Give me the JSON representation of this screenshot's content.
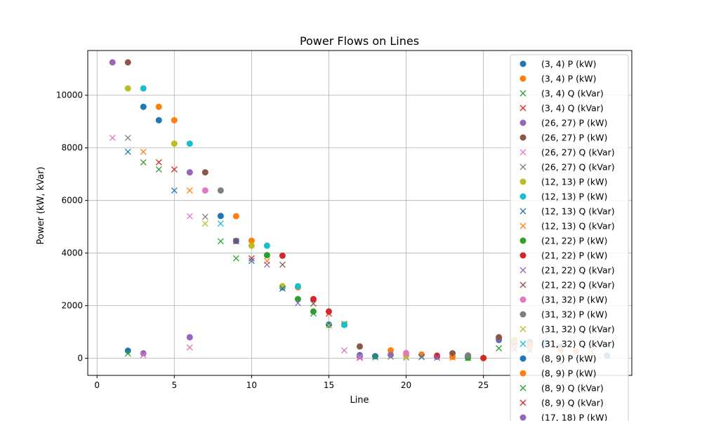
{
  "chart_data": {
    "type": "scatter",
    "title": "Power Flows on Lines",
    "xlabel": "Line",
    "ylabel": "Power (kW, kVar)",
    "xlim": [
      -0.6,
      34.6
    ],
    "ylim": [
      -650,
      11700
    ],
    "xticks": [
      0,
      5,
      10,
      15,
      20,
      25
    ],
    "yticks": [
      0,
      2000,
      4000,
      6000,
      8000,
      10000
    ],
    "grid": true,
    "legend_position": "right",
    "series": [
      {
        "name": "(3, 4) P (kW)",
        "marker": "circle",
        "color": "#1f77b4",
        "points": [
          [
            2,
            290
          ],
          [
            3,
            9560
          ],
          [
            4,
            9050
          ],
          [
            9,
            4460
          ],
          [
            12,
            2700
          ],
          [
            15,
            1280
          ],
          [
            17,
            120
          ],
          [
            18,
            80
          ],
          [
            21,
            140
          ],
          [
            24,
            80
          ],
          [
            26,
            700
          ],
          [
            27,
            650
          ],
          [
            28,
            620
          ],
          [
            29,
            550
          ],
          [
            30,
            440
          ],
          [
            33,
            100
          ]
        ]
      },
      {
        "name": "(3, 4) P (kW)",
        "marker": "circle",
        "color": "#ff7f0e",
        "points": [
          [
            4,
            9560
          ],
          [
            5,
            9050
          ],
          [
            9,
            5400
          ],
          [
            10,
            4470
          ],
          [
            13,
            2700
          ],
          [
            16,
            1280
          ],
          [
            19,
            300
          ],
          [
            21,
            140
          ],
          [
            23,
            60
          ],
          [
            25,
            10
          ],
          [
            27,
            560
          ],
          [
            28,
            520
          ],
          [
            30,
            300
          ],
          [
            31,
            260
          ]
        ]
      },
      {
        "name": "(3, 4) Q (kVar)",
        "marker": "x",
        "color": "#2ca02c",
        "points": [
          [
            2,
            180
          ],
          [
            3,
            7450
          ],
          [
            4,
            7180
          ],
          [
            8,
            4450
          ],
          [
            9,
            3800
          ],
          [
            14,
            1700
          ],
          [
            16,
            1300
          ],
          [
            18,
            40
          ],
          [
            24,
            10
          ],
          [
            26,
            380
          ]
        ]
      },
      {
        "name": "(3, 4) Q (kVar)",
        "marker": "x",
        "color": "#d62728",
        "points": [
          [
            4,
            7450
          ],
          [
            5,
            7180
          ],
          [
            9,
            4450
          ],
          [
            10,
            3800
          ],
          [
            15,
            1700
          ],
          [
            17,
            20
          ],
          [
            27,
            350
          ]
        ]
      },
      {
        "name": "(26, 27) P (kW)",
        "marker": "circle",
        "color": "#9467bd",
        "points": [
          [
            1,
            11250
          ],
          [
            3,
            190
          ],
          [
            6,
            7070
          ],
          [
            6,
            800
          ],
          [
            17,
            80
          ],
          [
            19,
            130
          ],
          [
            22,
            60
          ],
          [
            26,
            750
          ],
          [
            27,
            620
          ],
          [
            29,
            520
          ]
        ]
      },
      {
        "name": "(26, 27) P (kW)",
        "marker": "circle",
        "color": "#8c564b",
        "points": [
          [
            2,
            11250
          ],
          [
            7,
            7070
          ],
          [
            17,
            450
          ],
          [
            23,
            190
          ],
          [
            26,
            800
          ]
        ]
      },
      {
        "name": "(26, 27) Q (kVar)",
        "marker": "x",
        "color": "#e377c2",
        "points": [
          [
            1,
            8380
          ],
          [
            3,
            120
          ],
          [
            6,
            5400
          ],
          [
            6,
            410
          ],
          [
            16,
            300
          ],
          [
            17,
            40
          ]
        ]
      },
      {
        "name": "(26, 27) Q (kVar)",
        "marker": "x",
        "color": "#7f7f7f",
        "points": [
          [
            2,
            8380
          ],
          [
            7,
            5380
          ],
          [
            19,
            60
          ],
          [
            20,
            30
          ]
        ]
      },
      {
        "name": "(12, 13) P (kW)",
        "marker": "circle",
        "color": "#bcbd22",
        "points": [
          [
            2,
            10260
          ],
          [
            5,
            8160
          ],
          [
            10,
            4280
          ],
          [
            12,
            2740
          ],
          [
            20,
            100
          ],
          [
            27,
            700
          ]
        ]
      },
      {
        "name": "(12, 13) P (kW)",
        "marker": "circle",
        "color": "#17becf",
        "points": [
          [
            3,
            10260
          ],
          [
            6,
            8160
          ],
          [
            11,
            4280
          ],
          [
            13,
            2740
          ],
          [
            16,
            1270
          ],
          [
            29,
            600
          ]
        ]
      },
      {
        "name": "(12, 13) Q (kVar)",
        "marker": "x",
        "color": "#1f77b4",
        "points": [
          [
            2,
            7850
          ],
          [
            5,
            6380
          ],
          [
            10,
            3700
          ],
          [
            12,
            2650
          ],
          [
            21,
            50
          ],
          [
            28,
            310
          ]
        ]
      },
      {
        "name": "(12, 13) Q (kVar)",
        "marker": "x",
        "color": "#ff7f0e",
        "points": [
          [
            3,
            7850
          ],
          [
            6,
            6380
          ],
          [
            11,
            3700
          ],
          [
            23,
            30
          ],
          [
            32,
            260
          ]
        ]
      },
      {
        "name": "(21, 22) P (kW)",
        "marker": "circle",
        "color": "#2ca02c",
        "points": [
          [
            11,
            3920
          ],
          [
            13,
            2250
          ],
          [
            14,
            1780
          ],
          [
            24,
            20
          ]
        ]
      },
      {
        "name": "(21, 22) P (kW)",
        "marker": "circle",
        "color": "#d62728",
        "points": [
          [
            12,
            3900
          ],
          [
            14,
            2250
          ],
          [
            15,
            1780
          ],
          [
            22,
            100
          ],
          [
            25,
            10
          ]
        ]
      },
      {
        "name": "(21, 22) Q (kVar)",
        "marker": "x",
        "color": "#9467bd",
        "points": [
          [
            11,
            3560
          ],
          [
            13,
            2100
          ],
          [
            22,
            20
          ]
        ]
      },
      {
        "name": "(21, 22) Q (kVar)",
        "marker": "x",
        "color": "#8c564b",
        "points": [
          [
            12,
            3560
          ],
          [
            14,
            2080
          ]
        ]
      },
      {
        "name": "(31, 32) P (kW)",
        "marker": "circle",
        "color": "#e377c2",
        "points": [
          [
            7,
            6380
          ],
          [
            20,
            200
          ]
        ]
      },
      {
        "name": "(31, 32) P (kW)",
        "marker": "circle",
        "color": "#7f7f7f",
        "points": [
          [
            8,
            6380
          ],
          [
            24,
            110
          ]
        ]
      },
      {
        "name": "(31, 32) Q (kVar)",
        "marker": "x",
        "color": "#bcbd22",
        "points": [
          [
            7,
            5120
          ],
          [
            15,
            1250
          ]
        ]
      },
      {
        "name": "(31, 32) Q (kVar)",
        "marker": "x",
        "color": "#17becf",
        "points": [
          [
            8,
            5120
          ]
        ]
      },
      {
        "name": "(8, 9) P (kW)",
        "marker": "circle",
        "color": "#1f77b4",
        "points": [
          [
            8,
            5410
          ]
        ]
      },
      {
        "name": "(8, 9) P (kW)",
        "marker": "circle",
        "color": "#ff7f0e",
        "points": []
      },
      {
        "name": "(8, 9) Q (kVar)",
        "marker": "x",
        "color": "#2ca02c",
        "points": []
      },
      {
        "name": "(8, 9) Q (kVar)",
        "marker": "x",
        "color": "#d62728",
        "points": []
      },
      {
        "name": "(17, 18) P (kW)",
        "marker": "circle",
        "color": "#9467bd",
        "points": []
      }
    ]
  }
}
